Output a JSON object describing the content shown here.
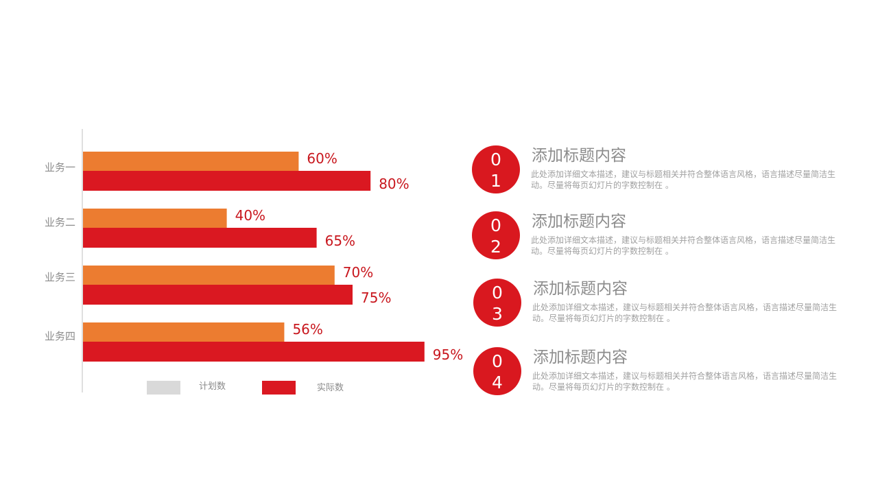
{
  "chart_data": {
    "type": "bar",
    "orientation": "horizontal",
    "categories": [
      "业务一",
      "业务二",
      "业务三",
      "业务四"
    ],
    "series": [
      {
        "name": "计划数",
        "values": [
          60,
          40,
          70,
          56
        ],
        "labels": [
          "60%",
          "40%",
          "70%",
          "56%"
        ],
        "color": "#ec7c30"
      },
      {
        "name": "实际数",
        "values": [
          80,
          65,
          75,
          95
        ],
        "labels": [
          "80%",
          "65%",
          "75%",
          "95%"
        ],
        "color": "#da1821"
      }
    ],
    "xlim": [
      0,
      100
    ],
    "value_label_color": "#c8161d",
    "grid": false,
    "legend_position": "bottom",
    "legend": [
      {
        "name": "计划数",
        "color": "#d9d9d9"
      },
      {
        "name": "实际数",
        "color": "#da1821"
      }
    ]
  },
  "items": [
    {
      "number": [
        "0",
        "1"
      ],
      "title": "添加标题内容",
      "desc": "此处添加详细文本描述，建议与标题相关并符合整体语言风格，语言描述尽量简洁生动。尽量将每页幻灯片的字数控制在 。"
    },
    {
      "number": [
        "0",
        "2"
      ],
      "title": "添加标题内容",
      "desc": "此处添加详细文本描述，建议与标题相关并符合整体语言风格，语言描述尽量简洁生动。尽量将每页幻灯片的字数控制在 。"
    },
    {
      "number": [
        "0",
        "3"
      ],
      "title": "添加标题内容",
      "desc": "此处添加详细文本描述，建议与标题相关并符合整体语言风格，语言描述尽量简洁生动。尽量将每页幻灯片的字数控制在 。"
    },
    {
      "number": [
        "0",
        "4"
      ],
      "title": "添加标题内容",
      "desc": "此处添加详细文本描述，建议与标题相关并符合整体语言风格，语言描述尽量简洁生动。尽量将每页幻灯片的字数控制在 。"
    }
  ]
}
